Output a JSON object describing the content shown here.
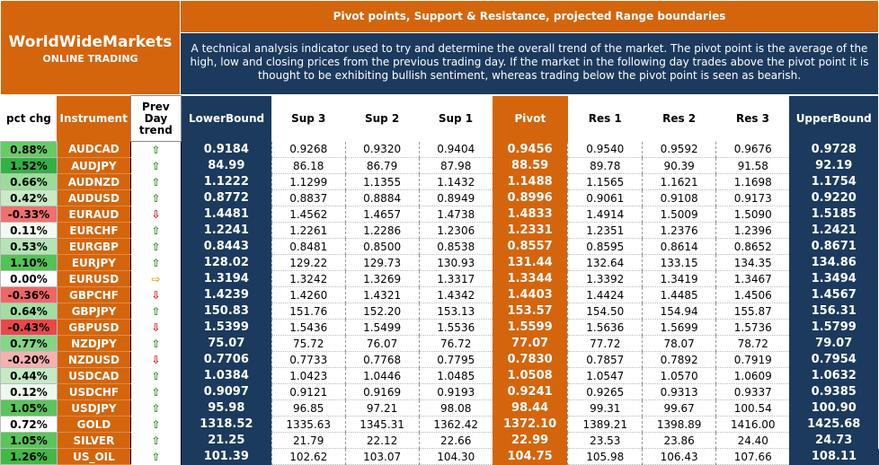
{
  "logo": {
    "brand": "WorldWideMarkets",
    "sub": "ONLINE TRADING"
  },
  "header": {
    "title": "Pivot points, Support & Resistance, projected Range boundaries",
    "description": "A technical analysis indicator used to try and determine the overall trend of the market. The pivot point is the average of the high, low and closing prices from the previous trading day.  If the market in the following day trades above the pivot point it is thought to be exhibiting bullish sentiment, whereas trading below the pivot point is seen as bearish."
  },
  "columns": {
    "pct": "pct chg",
    "instrument": "Instrument",
    "trend": "Prev Day trend",
    "lower": "LowerBound",
    "s3": "Sup 3",
    "s2": "Sup 2",
    "s1": "Sup 1",
    "pivot": "Pivot",
    "r1": "Res 1",
    "r2": "Res 2",
    "r3": "Res 3",
    "upper": "UpperBound"
  },
  "colors": {
    "orange": "#d4650d",
    "navy": "#1b3a5e",
    "up": "#2f8f2f",
    "down": "#d02020",
    "flat": "#e8a41a"
  },
  "rows": [
    {
      "pct": "0.88%",
      "pct_bg": "#66cc66",
      "inst": "AUDCAD",
      "trend": "up",
      "lower": "0.9184",
      "s3": "0.9268",
      "s2": "0.9320",
      "s1": "0.9404",
      "pivot": "0.9456",
      "r1": "0.9540",
      "r2": "0.9592",
      "r3": "0.9676",
      "upper": "0.9728"
    },
    {
      "pct": "1.52%",
      "pct_bg": "#33b044",
      "inst": "AUDJPY",
      "trend": "up",
      "lower": "84.99",
      "s3": "86.18",
      "s2": "86.79",
      "s1": "87.98",
      "pivot": "88.59",
      "r1": "89.78",
      "r2": "90.39",
      "r3": "91.58",
      "upper": "92.19"
    },
    {
      "pct": "0.66%",
      "pct_bg": "#9bdc9b",
      "inst": "AUDNZD",
      "trend": "up",
      "lower": "1.1222",
      "s3": "1.1299",
      "s2": "1.1355",
      "s1": "1.1432",
      "pivot": "1.1488",
      "r1": "1.1565",
      "r2": "1.1621",
      "r3": "1.1698",
      "upper": "1.1754"
    },
    {
      "pct": "0.42%",
      "pct_bg": "#c7ebc7",
      "inst": "AUDUSD",
      "trend": "up",
      "lower": "0.8772",
      "s3": "0.8837",
      "s2": "0.8884",
      "s1": "0.8949",
      "pivot": "0.8996",
      "r1": "0.9061",
      "r2": "0.9108",
      "r3": "0.9173",
      "upper": "0.9220"
    },
    {
      "pct": "-0.33%",
      "pct_bg": "#f07070",
      "inst": "EURAUD",
      "trend": "down",
      "lower": "1.4481",
      "s3": "1.4562",
      "s2": "1.4657",
      "s1": "1.4738",
      "pivot": "1.4833",
      "r1": "1.4914",
      "r2": "1.5009",
      "r3": "1.5090",
      "upper": "1.5185"
    },
    {
      "pct": "0.11%",
      "pct_bg": "#f2faf2",
      "inst": "EURCHF",
      "trend": "up",
      "lower": "1.2241",
      "s3": "1.2261",
      "s2": "1.2286",
      "s1": "1.2306",
      "pivot": "1.2331",
      "r1": "1.2351",
      "r2": "1.2376",
      "r3": "1.2396",
      "upper": "1.2421"
    },
    {
      "pct": "0.53%",
      "pct_bg": "#b4e4b4",
      "inst": "EURGBP",
      "trend": "up",
      "lower": "0.8443",
      "s3": "0.8481",
      "s2": "0.8500",
      "s1": "0.8538",
      "pivot": "0.8557",
      "r1": "0.8595",
      "r2": "0.8614",
      "r3": "0.8652",
      "upper": "0.8671"
    },
    {
      "pct": "1.10%",
      "pct_bg": "#55c255",
      "inst": "EURJPY",
      "trend": "up",
      "lower": "128.02",
      "s3": "129.22",
      "s2": "129.73",
      "s1": "130.93",
      "pivot": "131.44",
      "r1": "132.64",
      "r2": "133.15",
      "r3": "134.35",
      "upper": "134.86"
    },
    {
      "pct": "0.00%",
      "pct_bg": "#ffffff",
      "inst": "EURUSD",
      "trend": "flat",
      "lower": "1.3194",
      "s3": "1.3242",
      "s2": "1.3269",
      "s1": "1.3317",
      "pivot": "1.3344",
      "r1": "1.3392",
      "r2": "1.3419",
      "r3": "1.3467",
      "upper": "1.3494"
    },
    {
      "pct": "-0.36%",
      "pct_bg": "#ee6666",
      "inst": "GBPCHF",
      "trend": "down",
      "lower": "1.4239",
      "s3": "1.4260",
      "s2": "1.4321",
      "s1": "1.4342",
      "pivot": "1.4403",
      "r1": "1.4424",
      "r2": "1.4485",
      "r3": "1.4506",
      "upper": "1.4567"
    },
    {
      "pct": "0.64%",
      "pct_bg": "#a2dea2",
      "inst": "GBPJPY",
      "trend": "up",
      "lower": "150.83",
      "s3": "151.76",
      "s2": "152.20",
      "s1": "153.13",
      "pivot": "153.57",
      "r1": "154.50",
      "r2": "154.94",
      "r3": "155.87",
      "upper": "156.31"
    },
    {
      "pct": "-0.43%",
      "pct_bg": "#e84848",
      "inst": "GBPUSD",
      "trend": "down",
      "lower": "1.5399",
      "s3": "1.5436",
      "s2": "1.5499",
      "s1": "1.5536",
      "pivot": "1.5599",
      "r1": "1.5636",
      "r2": "1.5699",
      "r3": "1.5736",
      "upper": "1.5799"
    },
    {
      "pct": "0.77%",
      "pct_bg": "#86d486",
      "inst": "NZDJPY",
      "trend": "up",
      "lower": "75.07",
      "s3": "75.72",
      "s2": "76.07",
      "s1": "76.72",
      "pivot": "77.07",
      "r1": "77.72",
      "r2": "78.07",
      "r3": "78.72",
      "upper": "79.07"
    },
    {
      "pct": "-0.20%",
      "pct_bg": "#f7b0b0",
      "inst": "NZDUSD",
      "trend": "down",
      "lower": "0.7706",
      "s3": "0.7733",
      "s2": "0.7768",
      "s1": "0.7795",
      "pivot": "0.7830",
      "r1": "0.7857",
      "r2": "0.7892",
      "r3": "0.7919",
      "upper": "0.7954"
    },
    {
      "pct": "0.44%",
      "pct_bg": "#c4eac4",
      "inst": "USDCAD",
      "trend": "up",
      "lower": "1.0384",
      "s3": "1.0423",
      "s2": "1.0446",
      "s1": "1.0485",
      "pivot": "1.0508",
      "r1": "1.0547",
      "r2": "1.0570",
      "r3": "1.0609",
      "upper": "1.0632"
    },
    {
      "pct": "0.12%",
      "pct_bg": "#eef9ee",
      "inst": "USDCHF",
      "trend": "up",
      "lower": "0.9097",
      "s3": "0.9121",
      "s2": "0.9169",
      "s1": "0.9193",
      "pivot": "0.9241",
      "r1": "0.9265",
      "r2": "0.9313",
      "r3": "0.9337",
      "upper": "0.9385"
    },
    {
      "pct": "1.05%",
      "pct_bg": "#5cc45c",
      "inst": "USDJPY",
      "trend": "up",
      "lower": "95.98",
      "s3": "96.85",
      "s2": "97.21",
      "s1": "98.08",
      "pivot": "98.44",
      "r1": "99.31",
      "r2": "99.67",
      "r3": "100.54",
      "upper": "100.90"
    },
    {
      "pct": "0.72%",
      "pct_bg": "#ffffff",
      "inst": "GOLD",
      "trend": "up",
      "lower": "1318.52",
      "s3": "1335.63",
      "s2": "1345.31",
      "s1": "1362.42",
      "pivot": "1372.10",
      "r1": "1389.21",
      "r2": "1398.89",
      "r3": "1416.00",
      "upper": "1425.68"
    },
    {
      "pct": "1.05%",
      "pct_bg": "#5cc45c",
      "inst": "SILVER",
      "trend": "up",
      "lower": "21.25",
      "s3": "21.79",
      "s2": "22.12",
      "s1": "22.66",
      "pivot": "22.99",
      "r1": "23.53",
      "r2": "23.86",
      "r3": "24.40",
      "upper": "24.73"
    },
    {
      "pct": "1.26%",
      "pct_bg": "#44b844",
      "inst": "US_OIL",
      "trend": "up",
      "lower": "101.39",
      "s3": "102.62",
      "s2": "103.07",
      "s1": "104.30",
      "pivot": "104.75",
      "r1": "105.98",
      "r2": "106.43",
      "r3": "107.66",
      "upper": "108.11"
    }
  ]
}
